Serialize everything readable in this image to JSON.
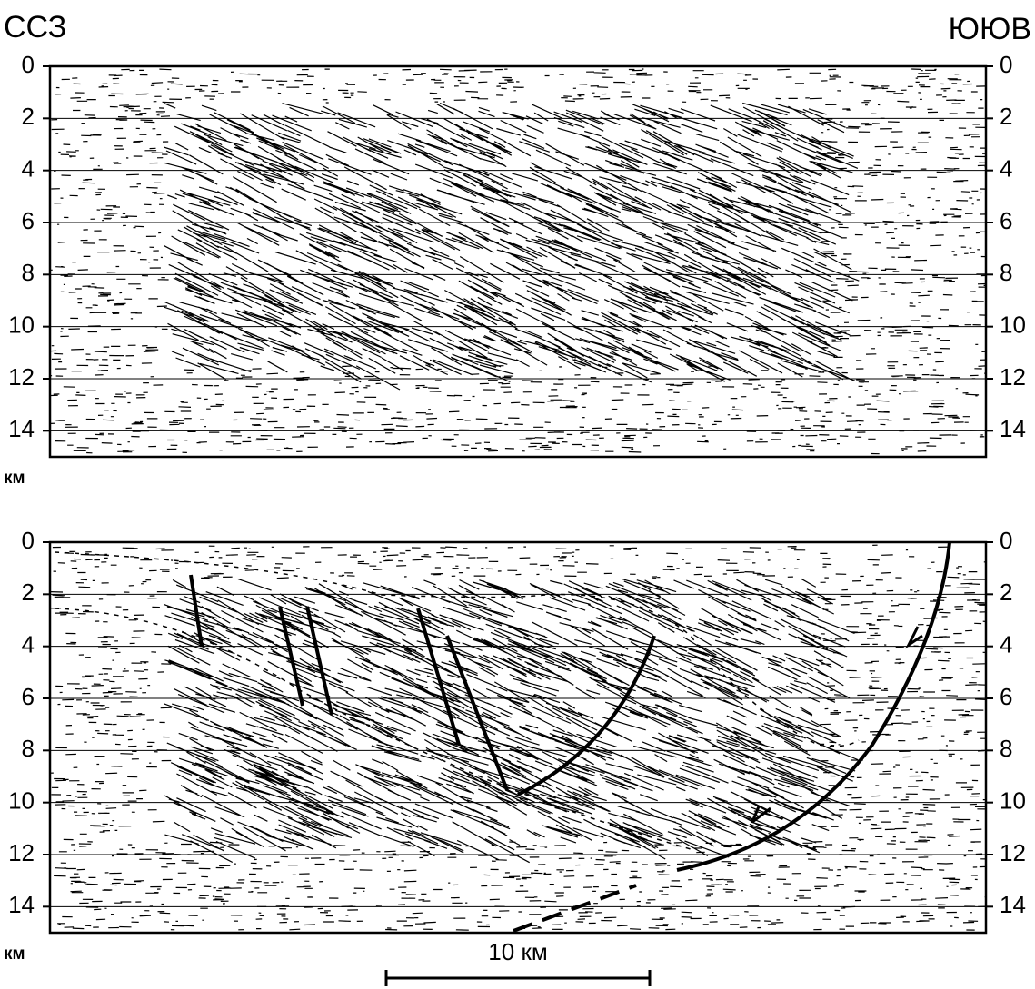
{
  "header": {
    "left": "ССЗ",
    "right": "ЮЮВ"
  },
  "panels": [
    {
      "ylim": [
        0,
        15
      ],
      "ticks": [
        0,
        2,
        4,
        6,
        8,
        10,
        12,
        14
      ],
      "unit": "км"
    },
    {
      "ylim": [
        0,
        15
      ],
      "ticks": [
        0,
        2,
        4,
        6,
        8,
        10,
        12,
        14
      ],
      "unit": "км"
    }
  ],
  "scale_bar": {
    "label": "10 км"
  }
}
